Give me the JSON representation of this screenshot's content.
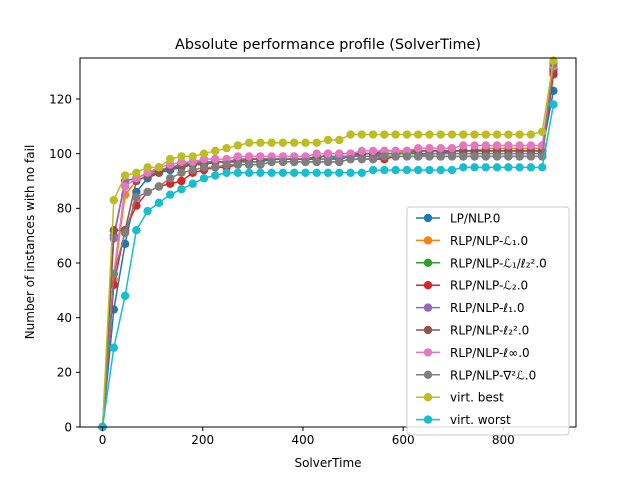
{
  "chart_data": {
    "type": "line",
    "title": "Absolute performance profile (SolverTime)",
    "xlabel": "SolverTime",
    "ylabel": "Number of instances with no fail",
    "xlim": [
      -45,
      945
    ],
    "ylim": [
      0,
      135
    ],
    "xticks": [
      0,
      200,
      400,
      600,
      800
    ],
    "yticks": [
      0,
      20,
      40,
      60,
      80,
      100,
      120
    ],
    "grid": false,
    "legend_position": "bottom-right",
    "x": [
      0,
      22.5,
      45,
      67.5,
      90,
      112.5,
      135,
      157.5,
      180,
      202.5,
      225,
      247.5,
      270,
      292.5,
      315,
      337.5,
      360,
      382.5,
      405,
      427.5,
      450,
      472.5,
      495,
      517.5,
      540,
      562.5,
      585,
      607.5,
      630,
      652.5,
      675,
      697.5,
      720,
      742.5,
      765,
      787.5,
      810,
      832.5,
      855,
      877.5,
      900
    ],
    "series": [
      {
        "name": "LP/NLP.0",
        "color": "#1f77b4",
        "values": [
          0,
          43,
          67,
          86,
          91,
          93,
          94,
          95,
          96,
          96,
          97,
          97,
          97,
          97,
          97,
          98,
          98,
          98,
          98,
          98,
          98,
          98,
          99,
          99,
          99,
          100,
          100,
          100,
          100,
          100,
          100,
          101,
          101,
          101,
          101,
          101,
          101,
          101,
          101,
          101,
          123
        ]
      },
      {
        "name": "RLP/NLP-ℒ₁.0",
        "color": "#ff7f0e",
        "values": [
          0,
          54,
          85,
          90,
          92,
          94,
          95,
          96,
          96,
          97,
          97,
          97,
          98,
          98,
          98,
          98,
          98,
          98,
          98,
          99,
          99,
          99,
          99,
          100,
          100,
          100,
          100,
          101,
          101,
          101,
          101,
          101,
          101,
          101,
          102,
          102,
          102,
          102,
          102,
          102,
          131
        ]
      },
      {
        "name": "RLP/NLP-ℒ₁/ℓ₂².0",
        "color": "#2ca02c",
        "values": [
          0,
          70,
          90,
          91,
          93,
          94,
          95,
          96,
          96,
          97,
          97,
          97,
          98,
          98,
          98,
          98,
          98,
          98,
          98,
          99,
          99,
          99,
          99,
          100,
          100,
          100,
          100,
          100,
          101,
          101,
          101,
          101,
          101,
          101,
          101,
          101,
          101,
          101,
          101,
          101,
          130
        ]
      },
      {
        "name": "RLP/NLP-ℒ₂.0",
        "color": "#d62728",
        "values": [
          0,
          52,
          72,
          81,
          86,
          88,
          89,
          90,
          93,
          94,
          95,
          95,
          96,
          96,
          96,
          97,
          97,
          97,
          97,
          97,
          97,
          97,
          98,
          98,
          98,
          98,
          99,
          99,
          99,
          99,
          99,
          99,
          99,
          99,
          99,
          99,
          99,
          99,
          99,
          99,
          129
        ]
      },
      {
        "name": "RLP/NLP-ℓ₁.0",
        "color": "#9467bd",
        "values": [
          0,
          69,
          90,
          91,
          93,
          94,
          95,
          96,
          97,
          97,
          97,
          97,
          98,
          98,
          98,
          98,
          98,
          98,
          98,
          98,
          98,
          99,
          99,
          99,
          99,
          99,
          99,
          99,
          99,
          100,
          100,
          100,
          100,
          100,
          100,
          100,
          100,
          100,
          100,
          100,
          132
        ]
      },
      {
        "name": "RLP/NLP-ℓ₂².0",
        "color": "#8c564b",
        "values": [
          0,
          72,
          72,
          90,
          92,
          93,
          95,
          95,
          96,
          96,
          97,
          97,
          97,
          98,
          98,
          98,
          98,
          98,
          98,
          98,
          100,
          100,
          100,
          100,
          100,
          101,
          101,
          101,
          101,
          101,
          101,
          101,
          101,
          101,
          101,
          101,
          101,
          101,
          101,
          101,
          131
        ]
      },
      {
        "name": "RLP/NLP-ℓ∞.0",
        "color": "#e377c2",
        "values": [
          0,
          56,
          88,
          91,
          93,
          95,
          96,
          97,
          97,
          98,
          98,
          98,
          99,
          99,
          99,
          99,
          99,
          99,
          99,
          100,
          100,
          100,
          100,
          101,
          101,
          101,
          101,
          101,
          102,
          102,
          102,
          102,
          103,
          103,
          103,
          103,
          103,
          103,
          103,
          103,
          132
        ]
      },
      {
        "name": "RLP/NLP-∇²ℒ.0",
        "color": "#7f7f7f",
        "values": [
          0,
          56,
          71,
          84,
          86,
          88,
          91,
          93,
          94,
          95,
          95,
          96,
          96,
          96,
          96,
          97,
          97,
          97,
          97,
          97,
          97,
          97,
          98,
          98,
          98,
          99,
          99,
          99,
          99,
          99,
          99,
          99,
          99,
          99,
          99,
          99,
          99,
          99,
          99,
          99,
          133
        ]
      },
      {
        "name": "virt. best",
        "color": "#bcbd22",
        "values": [
          0,
          83,
          92,
          93,
          95,
          95,
          98,
          99,
          99,
          100,
          101,
          102,
          103,
          104,
          104,
          104,
          104,
          104,
          104,
          104,
          105,
          105,
          107,
          107,
          107,
          107,
          107,
          107,
          107,
          107,
          107,
          107,
          107,
          107,
          107,
          107,
          107,
          107,
          107,
          108,
          134
        ]
      },
      {
        "name": "virt. worst",
        "color": "#17becf",
        "values": [
          0,
          29,
          48,
          72,
          79,
          82,
          85,
          87,
          89,
          91,
          92,
          93,
          93,
          93,
          93,
          93,
          93,
          93,
          93,
          93,
          93,
          93,
          93,
          93,
          94,
          94,
          94,
          94,
          94,
          94,
          94,
          94,
          95,
          95,
          95,
          95,
          95,
          95,
          95,
          95,
          118
        ]
      }
    ]
  }
}
